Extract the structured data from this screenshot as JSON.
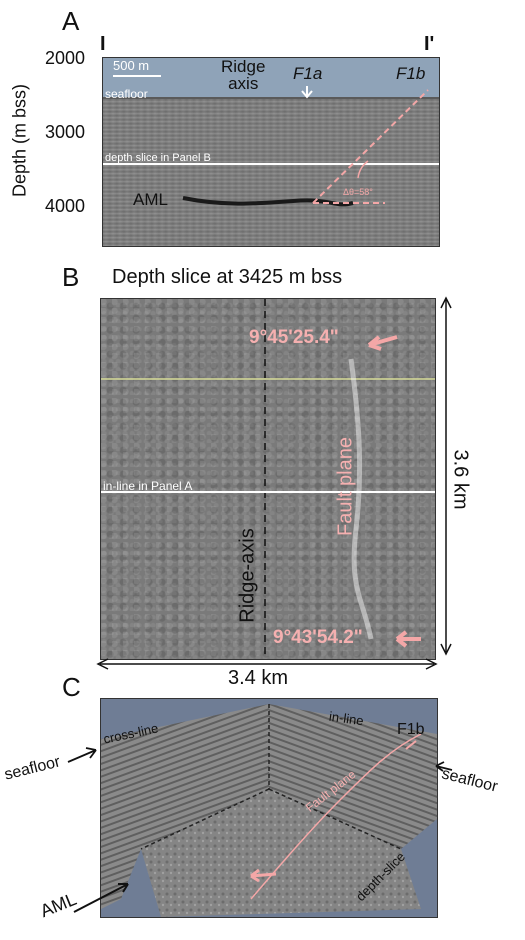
{
  "panel_a": {
    "letter": "A",
    "section_start": "I",
    "section_end": "I'",
    "yaxis_label": "Depth (m bss)",
    "yticks": [
      "2000",
      "3000",
      "4000"
    ],
    "scale_bar": "500 m",
    "ridge_axis": "Ridge\naxis",
    "f1a": "F1a",
    "f1b": "F1b",
    "seafloor": "seafloor",
    "depth_slice_label": "depth slice in Panel B",
    "aml": "AML",
    "dip": "Δθ=58°"
  },
  "panel_b": {
    "letter": "B",
    "title": "Depth slice at 3425 m bss",
    "coord_top": "9°45'25.4\"",
    "coord_bottom": "9°43'54.2\"",
    "inline_label": "in-line in Panel A",
    "fault_plane": "Fault plane",
    "ridge_axis": "Ridge-axis",
    "height_label": "3.6 km",
    "width_label": "3.4 km"
  },
  "panel_c": {
    "letter": "C",
    "cross_line": "cross-line",
    "in_line": "in-line",
    "f1b": "F1b",
    "seafloor_left": "seafloor",
    "seafloor_right": "seafloor",
    "fault_plane": "Fault plane",
    "aml": "AML",
    "depth_slice": "depth-slice"
  },
  "colors": {
    "water": "#8fa3b8",
    "fault": "#f4a7a7",
    "inline_marker": "#d8dd99",
    "background_3d": "#6f7d95"
  }
}
